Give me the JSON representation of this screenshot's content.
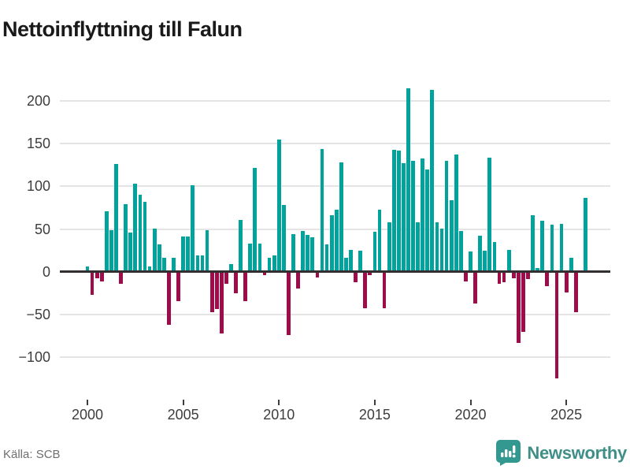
{
  "title": "Nettoinflyttning till Falun",
  "source": "Källa: SCB",
  "logo": {
    "text": "Newsworthy",
    "icon": "bar-chart-speech-bubble",
    "icon_color": "#33988f",
    "text_color": "#3f8f88"
  },
  "colors": {
    "positive": "#00a39b",
    "negative": "#9e0c49",
    "grid": "#e5e3e3",
    "zero_line": "#332f30",
    "axis_text": "#3d3d3d",
    "title_text": "#1a1a1a",
    "source_text": "#6f6f6f"
  },
  "chart_data": {
    "type": "bar",
    "title": "Nettoinflyttning till Falun",
    "xlabel": "",
    "ylabel": "",
    "frequency": "quarterly",
    "start": "2000-Q1",
    "grid": true,
    "legend": "none",
    "ylim": [
      -148,
      226
    ],
    "y_ticks": [
      200,
      150,
      100,
      50,
      0,
      -50,
      -100
    ],
    "y_tick_labels": [
      "200",
      "150",
      "100",
      "50",
      "0",
      "−50",
      "−100"
    ],
    "x_ticks": [
      {
        "label": "2000",
        "slot": 0
      },
      {
        "label": "2005",
        "slot": 20
      },
      {
        "label": "2010",
        "slot": 40
      },
      {
        "label": "2015",
        "slot": 60
      },
      {
        "label": "2020",
        "slot": 80
      },
      {
        "label": "2025",
        "slot": 100
      }
    ],
    "values": [
      6,
      -27,
      -8,
      -11,
      71,
      49,
      126,
      -14,
      79,
      46,
      103,
      90,
      82,
      6,
      51,
      32,
      16,
      -62,
      16,
      -34,
      41,
      41,
      101,
      19,
      19,
      49,
      -47,
      -44,
      -72,
      -14,
      9,
      -25,
      61,
      -34,
      33,
      122,
      33,
      -4,
      16,
      19,
      155,
      78,
      -74,
      44,
      -20,
      48,
      43,
      40,
      -7,
      144,
      32,
      66,
      73,
      128,
      16,
      26,
      -12,
      25,
      -43,
      -4,
      47,
      73,
      -43,
      58,
      143,
      142,
      127,
      215,
      130,
      58,
      133,
      120,
      213,
      58,
      51,
      130,
      84,
      137,
      48,
      -11,
      24,
      -37,
      42,
      25,
      134,
      35,
      -14,
      -12,
      26,
      -8,
      -83,
      -70,
      -9,
      66,
      4,
      60,
      -17,
      55,
      -125,
      56,
      -24,
      16,
      -47,
      0,
      87
    ]
  }
}
